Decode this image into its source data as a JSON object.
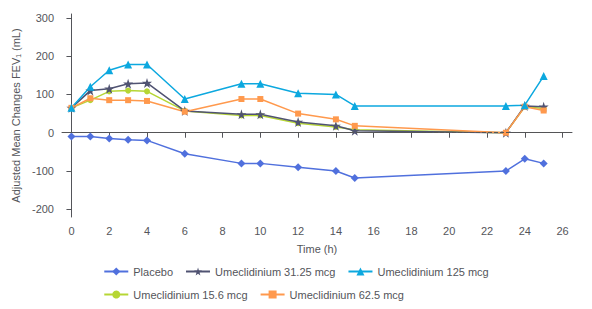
{
  "chart_data": {
    "type": "line",
    "xlabel": "Time (h)",
    "ylabel": "Adjusted Mean Changes FEV₁ (mL)",
    "x": [
      0,
      1,
      2,
      3,
      4,
      6,
      9,
      10,
      12,
      14,
      15,
      23,
      24,
      25
    ],
    "xlim": [
      -0.5,
      26.5
    ],
    "xticks": [
      0,
      2,
      4,
      6,
      8,
      10,
      12,
      14,
      16,
      18,
      20,
      22,
      24,
      26
    ],
    "ylim": [
      -220,
      310
    ],
    "yticks": [
      -200,
      -100,
      0,
      100,
      200,
      300
    ],
    "grid": false,
    "legend": "bottom",
    "reference_y": 0,
    "series": [
      {
        "name": "Placebo",
        "marker": "diamond",
        "line_style": "solid",
        "values": [
          -10,
          -10,
          -15,
          -18,
          -20,
          -55,
          -80,
          -80,
          -90,
          -100,
          -118,
          -100,
          -68,
          -80
        ]
      },
      {
        "name": "Umeclidinium 15.6 mcg",
        "marker": "circle",
        "line_style": "solid",
        "values": [
          65,
          85,
          108,
          110,
          108,
          57,
          45,
          45,
          25,
          15,
          8,
          0,
          68,
          63
        ]
      },
      {
        "name": "Umeclidinium 31.25 mcg",
        "marker": "star",
        "line_style": "solid",
        "values": [
          65,
          110,
          115,
          128,
          130,
          57,
          48,
          48,
          28,
          18,
          5,
          0,
          70,
          68
        ]
      },
      {
        "name": "Umeclidinium 62.5 mcg",
        "marker": "square",
        "line_style": "solid",
        "values": [
          65,
          90,
          85,
          85,
          83,
          55,
          88,
          88,
          50,
          35,
          18,
          0,
          68,
          58
        ]
      },
      {
        "name": "Umeclidinium 125 mcg",
        "marker": "triangle",
        "line_style": "solid",
        "values": [
          65,
          120,
          163,
          178,
          178,
          88,
          128,
          128,
          103,
          100,
          70,
          70,
          72,
          148
        ]
      }
    ],
    "legend_order": [
      "Placebo",
      "Umeclidinium 31.25 mcg",
      "Umeclidinium 125 mcg",
      "Umeclidinium 15.6 mcg",
      "Umeclidinium 62.5 mcg"
    ]
  }
}
